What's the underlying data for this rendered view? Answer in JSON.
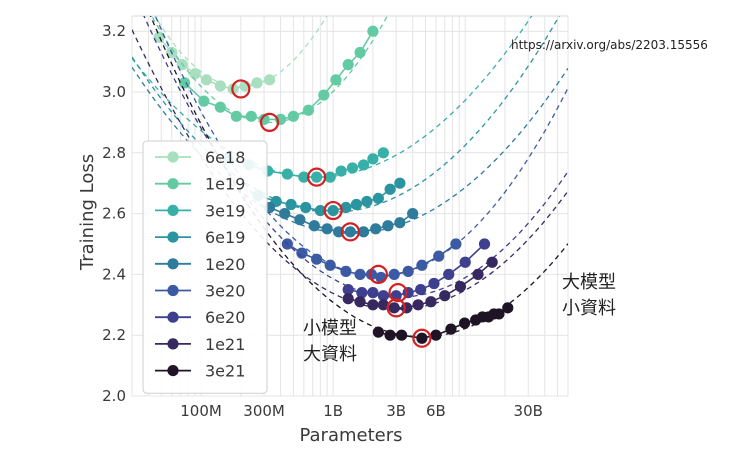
{
  "source_url": "https://arxiv.org/abs/2203.15556",
  "annotations": {
    "large_model_line1": "大模型",
    "large_model_line2": "小資料",
    "small_model_line1": "小模型",
    "small_model_line2": "大資料"
  },
  "chart_data": {
    "type": "scatter",
    "title": "",
    "xlabel": "Parameters",
    "ylabel": "Training Loss",
    "xscale": "log",
    "xlim": [
      30000000,
      60000000000
    ],
    "ylim": [
      2.0,
      3.25
    ],
    "x_ticks": [
      {
        "value": 100000000,
        "label": "100M"
      },
      {
        "value": 300000000,
        "label": "300M"
      },
      {
        "value": 1000000000,
        "label": "1B"
      },
      {
        "value": 3000000000,
        "label": "3B"
      },
      {
        "value": 6000000000,
        "label": "6B"
      },
      {
        "value": 30000000000,
        "label": "30B"
      }
    ],
    "y_ticks": [
      {
        "value": 2.0,
        "label": "2.0"
      },
      {
        "value": 2.2,
        "label": "2.2"
      },
      {
        "value": 2.4,
        "label": "2.4"
      },
      {
        "value": 2.6,
        "label": "2.6"
      },
      {
        "value": 2.8,
        "label": "2.8"
      },
      {
        "value": 3.0,
        "label": "3.0"
      },
      {
        "value": 3.2,
        "label": "3.2"
      }
    ],
    "grid": true,
    "legend_position": "left",
    "series": [
      {
        "name": "6e18",
        "color": "#a8dfbf",
        "fit": {
          "a": 3.017,
          "b": 0.55,
          "x0": 200000000
        },
        "points": [
          [
            48000000,
            3.18
          ],
          [
            60000000,
            3.13
          ],
          [
            72000000,
            3.09
          ],
          [
            90000000,
            3.06
          ],
          [
            110000000,
            3.04
          ],
          [
            140000000,
            3.02
          ],
          [
            175000000,
            3.01
          ],
          [
            215000000,
            3.02
          ],
          [
            265000000,
            3.03
          ],
          [
            330000000,
            3.04
          ]
        ]
      },
      {
        "name": "1e19",
        "color": "#63cba3",
        "fit": {
          "a": 2.9,
          "b": 0.44,
          "x0": 330000000
        },
        "points": [
          [
            75000000,
            3.03
          ],
          [
            105000000,
            2.97
          ],
          [
            140000000,
            2.95
          ],
          [
            185000000,
            2.92
          ],
          [
            240000000,
            2.92
          ],
          [
            300000000,
            2.91
          ],
          [
            400000000,
            2.91
          ],
          [
            500000000,
            2.92
          ],
          [
            650000000,
            2.94
          ],
          [
            850000000,
            2.99
          ],
          [
            1050000000,
            3.04
          ],
          [
            1300000000,
            3.09
          ],
          [
            1600000000,
            3.13
          ],
          [
            2000000000,
            3.2
          ]
        ]
      },
      {
        "name": "3e19",
        "color": "#38b0a8",
        "fit": {
          "a": 2.72,
          "b": 0.2,
          "x0": 750000000
        },
        "points": [
          [
            160000000,
            2.78
          ],
          [
            230000000,
            2.76
          ],
          [
            320000000,
            2.74
          ],
          [
            450000000,
            2.73
          ],
          [
            600000000,
            2.72
          ],
          [
            750000000,
            2.72
          ],
          [
            950000000,
            2.72
          ],
          [
            1150000000,
            2.74
          ],
          [
            1400000000,
            2.75
          ],
          [
            1700000000,
            2.76
          ],
          [
            2000000000,
            2.78
          ],
          [
            2400000000,
            2.8
          ]
        ]
      },
      {
        "name": "6e19",
        "color": "#2a95a0",
        "fit": {
          "a": 2.605,
          "b": 0.22,
          "x0": 1000000000
        },
        "points": [
          [
            270000000,
            2.66
          ],
          [
            370000000,
            2.64
          ],
          [
            480000000,
            2.63
          ],
          [
            620000000,
            2.62
          ],
          [
            800000000,
            2.61
          ],
          [
            1000000000,
            2.61
          ],
          [
            1250000000,
            2.62
          ],
          [
            1500000000,
            2.63
          ],
          [
            1800000000,
            2.64
          ],
          [
            2200000000,
            2.65
          ],
          [
            2700000000,
            2.68
          ],
          [
            3200000000,
            2.7
          ]
        ]
      },
      {
        "name": "1e20",
        "color": "#2f7b9c",
        "fit": {
          "a": 2.535,
          "b": 0.2,
          "x0": 1350000000
        },
        "points": [
          [
            330000000,
            2.62
          ],
          [
            430000000,
            2.6
          ],
          [
            560000000,
            2.58
          ],
          [
            720000000,
            2.56
          ],
          [
            900000000,
            2.55
          ],
          [
            1100000000,
            2.54
          ],
          [
            1350000000,
            2.54
          ],
          [
            1700000000,
            2.54
          ],
          [
            2100000000,
            2.55
          ],
          [
            2600000000,
            2.56
          ],
          [
            3200000000,
            2.57
          ],
          [
            4000000000,
            2.6
          ]
        ]
      },
      {
        "name": "3e20",
        "color": "#3c5aa3",
        "fit": {
          "a": 2.395,
          "b": 0.3,
          "x0": 2200000000
        },
        "points": [
          [
            450000000,
            2.5
          ],
          [
            580000000,
            2.47
          ],
          [
            750000000,
            2.45
          ],
          [
            950000000,
            2.43
          ],
          [
            1250000000,
            2.41
          ],
          [
            1600000000,
            2.4
          ],
          [
            1950000000,
            2.4
          ],
          [
            2300000000,
            2.39
          ],
          [
            2900000000,
            2.4
          ],
          [
            3700000000,
            2.41
          ],
          [
            4700000000,
            2.43
          ],
          [
            6300000000,
            2.46
          ],
          [
            8500000000,
            2.5
          ]
        ]
      },
      {
        "name": "6e20",
        "color": "#3e3f8e",
        "fit": {
          "a": 2.325,
          "b": 0.25,
          "x0": 3100000000
        },
        "points": [
          [
            1300000000,
            2.35
          ],
          [
            1650000000,
            2.34
          ],
          [
            2000000000,
            2.34
          ],
          [
            2400000000,
            2.33
          ],
          [
            3000000000,
            2.33
          ],
          [
            3700000000,
            2.34
          ],
          [
            4600000000,
            2.35
          ],
          [
            5800000000,
            2.37
          ],
          [
            7500000000,
            2.4
          ],
          [
            10000000000,
            2.44
          ],
          [
            14000000000,
            2.5
          ]
        ]
      },
      {
        "name": "1e21",
        "color": "#37295f",
        "fit": {
          "a": 2.285,
          "b": 0.23,
          "x0": 3000000000
        },
        "points": [
          [
            1300000000,
            2.32
          ],
          [
            1600000000,
            2.31
          ],
          [
            2000000000,
            2.3
          ],
          [
            2400000000,
            2.3
          ],
          [
            2900000000,
            2.29
          ],
          [
            3600000000,
            2.29
          ],
          [
            4400000000,
            2.3
          ],
          [
            5500000000,
            2.31
          ],
          [
            7000000000,
            2.33
          ],
          [
            9200000000,
            2.36
          ],
          [
            12500000000,
            2.4
          ],
          [
            16000000000,
            2.44
          ]
        ]
      },
      {
        "name": "3e21",
        "color": "#1f1426",
        "fit": {
          "a": 2.195,
          "b": 0.25,
          "x0": 4700000000
        },
        "points": [
          [
            2200000000,
            2.21
          ],
          [
            2700000000,
            2.2
          ],
          [
            3300000000,
            2.2
          ],
          [
            4700000000,
            2.19
          ],
          [
            6000000000,
            2.2
          ],
          [
            7800000000,
            2.22
          ],
          [
            9900000000,
            2.24
          ],
          [
            12000000000,
            2.25
          ],
          [
            13500000000,
            2.26
          ],
          [
            15000000000,
            2.26
          ],
          [
            16500000000,
            2.27
          ],
          [
            18000000000,
            2.27
          ],
          [
            21000000000,
            2.29
          ]
        ]
      }
    ],
    "optimal_points": [
      {
        "series": "6e18",
        "x": 200000000,
        "y": 3.01
      },
      {
        "series": "1e19",
        "x": 330000000,
        "y": 2.9
      },
      {
        "series": "3e19",
        "x": 750000000,
        "y": 2.72
      },
      {
        "series": "6e19",
        "x": 1000000000,
        "y": 2.61
      },
      {
        "series": "1e20",
        "x": 1350000000,
        "y": 2.54
      },
      {
        "series": "3e20",
        "x": 2200000000,
        "y": 2.4
      },
      {
        "series": "6e20",
        "x": 3100000000,
        "y": 2.34
      },
      {
        "series": "1e21",
        "x": 3000000000,
        "y": 2.29
      },
      {
        "series": "3e21",
        "x": 4700000000,
        "y": 2.19
      }
    ],
    "optimal_marker_color": "#d42020"
  }
}
